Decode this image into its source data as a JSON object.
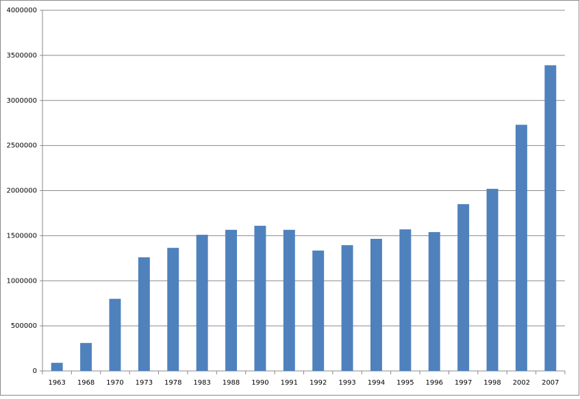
{
  "chart_data": {
    "type": "bar",
    "categories": [
      "1963",
      "1968",
      "1970",
      "1973",
      "1978",
      "1983",
      "1988",
      "1990",
      "1991",
      "1992",
      "1993",
      "1994",
      "1995",
      "1996",
      "1997",
      "1998",
      "2002",
      "2007"
    ],
    "values": [
      90000,
      310000,
      800000,
      1260000,
      1365000,
      1510000,
      1565000,
      1610000,
      1565000,
      1335000,
      1395000,
      1465000,
      1570000,
      1540000,
      1850000,
      2020000,
      2730000,
      3390000
    ],
    "color": "#4f81bd",
    "ylim": [
      0,
      4000000
    ],
    "yticks": [
      0,
      500000,
      1000000,
      1500000,
      2000000,
      2500000,
      3000000,
      3500000,
      4000000
    ],
    "grid": true
  }
}
